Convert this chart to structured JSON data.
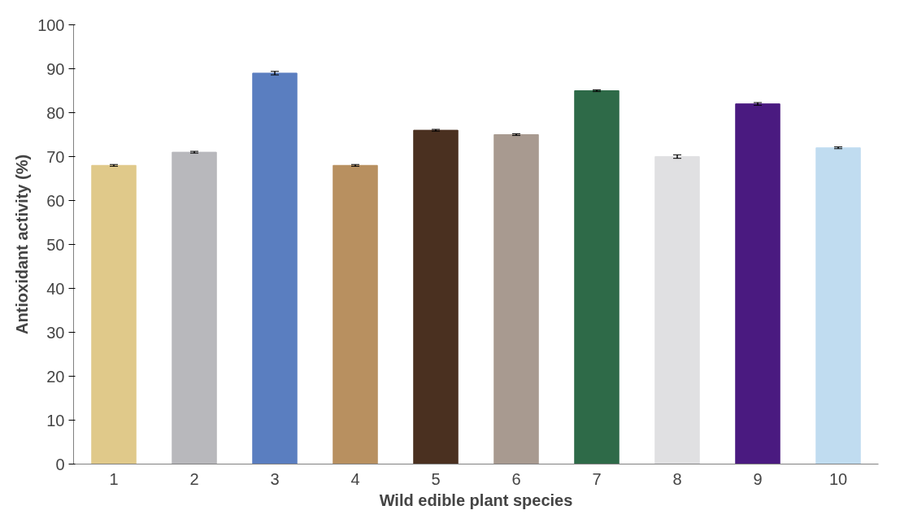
{
  "chart_data": {
    "type": "bar",
    "xlabel": "Wild edible plant species",
    "ylabel": "Antioxidant activity (%)",
    "categories": [
      "1",
      "2",
      "3",
      "4",
      "5",
      "6",
      "7",
      "8",
      "9",
      "10"
    ],
    "values": [
      68,
      71,
      89,
      68,
      76,
      75,
      85,
      70,
      82,
      72
    ],
    "errors": [
      0.2,
      0.2,
      0.4,
      0.2,
      0.2,
      0.2,
      0.2,
      0.4,
      0.3,
      0.2
    ],
    "colors": [
      "#e0c98a",
      "#b8b8bc",
      "#5a7ec0",
      "#b89060",
      "#4a3020",
      "#a89a90",
      "#2e6a48",
      "#e0e0e2",
      "#4a1a80",
      "#c0dcf0"
    ],
    "ylim": [
      0,
      100
    ],
    "yticks": [
      0,
      10,
      20,
      30,
      40,
      50,
      60,
      70,
      80,
      90,
      100
    ],
    "grid": false
  }
}
